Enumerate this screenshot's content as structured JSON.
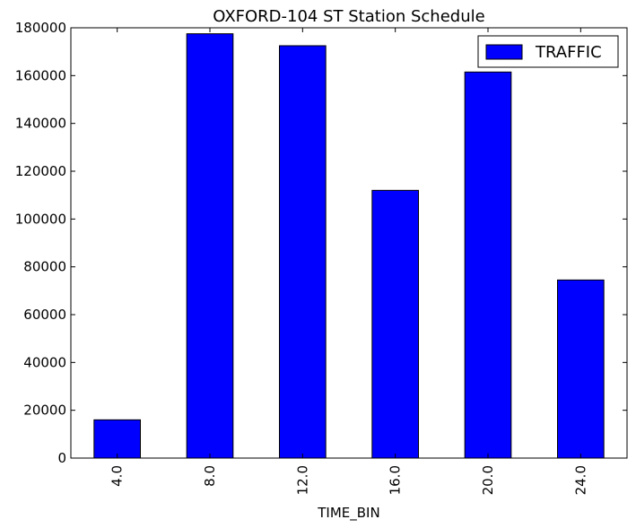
{
  "chart_data": {
    "type": "bar",
    "title": "OXFORD-104 ST Station Schedule",
    "xlabel": "TIME_BIN",
    "ylabel": "",
    "categories": [
      "4.0",
      "8.0",
      "12.0",
      "16.0",
      "20.0",
      "24.0"
    ],
    "series": [
      {
        "name": "TRAFFIC",
        "color": "#0000ff",
        "values": [
          16000,
          177500,
          172500,
          112000,
          161500,
          74500
        ]
      }
    ],
    "ylim": [
      0,
      180000
    ],
    "yticks": [
      "0",
      "20000",
      "40000",
      "60000",
      "80000",
      "100000",
      "120000",
      "140000",
      "160000",
      "180000"
    ],
    "legend_position": "top-right",
    "grid": false
  }
}
